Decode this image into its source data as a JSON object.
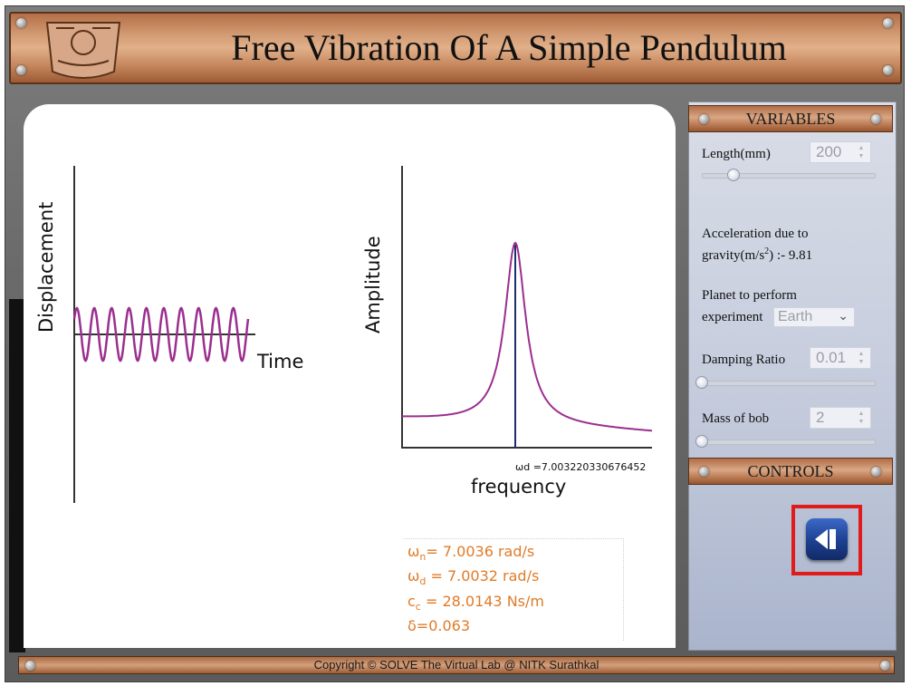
{
  "header": {
    "title": "Free Vibration Of A Simple Pendulum"
  },
  "displacement_plot": {
    "ylabel": "Displacement",
    "xlabel": "Time"
  },
  "amplitude_plot": {
    "ylabel": "Amplitude",
    "xlabel": "frequency",
    "wd_annotation": "ωd =7.003220330676452"
  },
  "results": {
    "wn_sym": "ω",
    "wn_sub": "n",
    "wn_val": "= 7.0036 rad/s",
    "wd_sym": "ω",
    "wd_sub": "d",
    "wd_val": " = 7.0032 rad/s",
    "cc_sym": "c",
    "cc_sub": "c",
    "cc_val": " = 28.0143 Ns/m",
    "delta": "δ=0.063"
  },
  "variables": {
    "title": "VARIABLES",
    "length_label": "Length(mm)",
    "length_value": "200",
    "length_slider_fraction": 0.2,
    "gravity_label_1": "Acceleration due to",
    "gravity_label_2": "gravity(m/s",
    "gravity_sup": "2",
    "gravity_label_3": ") :- 9.81",
    "planet_label_1": "Planet to perform",
    "planet_label_2": "experiment",
    "planet_value": "Earth",
    "damping_label": "Damping Ratio",
    "damping_value": "0.01",
    "damping_slider_fraction": 0.0,
    "mass_label": "Mass of bob",
    "mass_value": "2",
    "mass_slider_fraction": 0.0
  },
  "controls": {
    "title": "CONTROLS",
    "play_icon": "step-back-icon"
  },
  "footer": {
    "text": "Copyright © SOLVE The Virtual Lab @ NITK Surathkal"
  },
  "colors": {
    "curve": "#9b2f8f",
    "result_text": "#e07b28",
    "highlight": "#e11a1a",
    "wd_line": "#1a2f6b"
  }
}
